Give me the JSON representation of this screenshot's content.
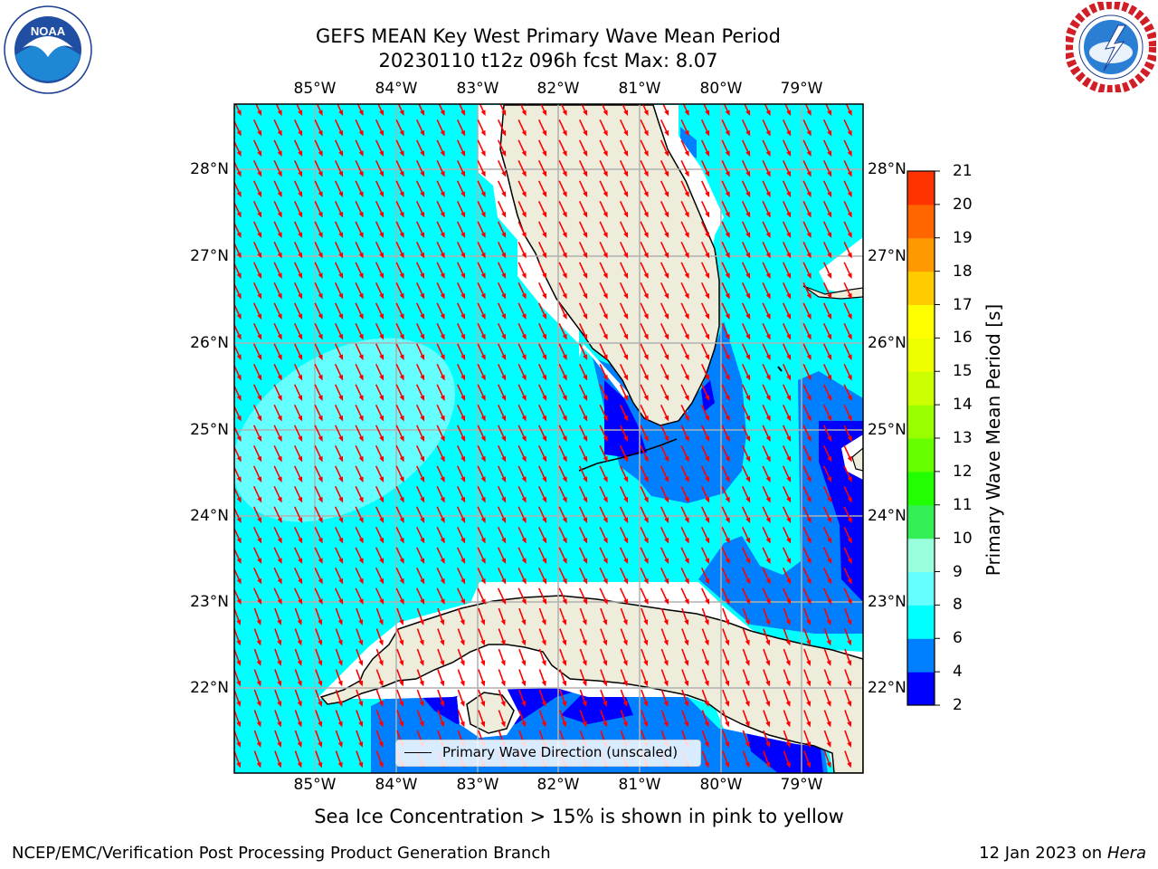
{
  "header": {
    "title_line1": "GEFS MEAN Key West Primary Wave Mean Period",
    "title_line2": "20230110 t12z 096h fcst   Max: 8.07"
  },
  "logos": {
    "noaa": {
      "text": "NOAA",
      "ring_text": "NATIONAL OCEANIC AND ATMOSPHERIC ADMINISTRATION · U.S. DEPARTMENT OF COMMERCE"
    },
    "nws": {
      "ring_text": "NATIONAL WEATHER SERVICE"
    }
  },
  "map": {
    "lon_labels": [
      "85°W",
      "84°W",
      "83°W",
      "82°W",
      "81°W",
      "80°W",
      "79°W"
    ],
    "lat_labels": [
      "28°N",
      "27°N",
      "26°N",
      "25°N",
      "24°N",
      "23°N",
      "22°N"
    ],
    "legend_label": "Primary Wave Direction (unscaled)",
    "land_color": "#eeecdb",
    "arrow_color": "#ff0000",
    "grid_color": "#b0b0b0"
  },
  "colorbar": {
    "label": "Primary Wave Mean Period [s]",
    "ticks": [
      "2",
      "4",
      "6",
      "8",
      "9",
      "10",
      "11",
      "12",
      "13",
      "14",
      "15",
      "16",
      "17",
      "18",
      "19",
      "20",
      "21"
    ],
    "colors": [
      "#0000ff",
      "#0080ff",
      "#00ffff",
      "#66ffff",
      "#99ffdd",
      "#33ee55",
      "#22ff00",
      "#66ff00",
      "#99ff00",
      "#ccff00",
      "#eeff00",
      "#ffff00",
      "#ffcc00",
      "#ff9900",
      "#ff6600",
      "#ff3300",
      "#ff0000"
    ]
  },
  "notes": {
    "ice": "Sea Ice Concentration > 15% is shown in pink to yellow"
  },
  "footer": {
    "left": "NCEP/EMC/Verification Post Processing Product Generation Branch",
    "right_prefix": "12 Jan 2023 on ",
    "right_host": "Hera"
  }
}
